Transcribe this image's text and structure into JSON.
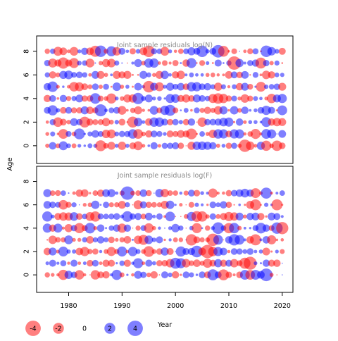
{
  "chart_data": [
    {
      "type": "scatter",
      "title": "Joint sample residuals log(N)",
      "ylabel": "Age",
      "xlim": [
        1974,
        2022
      ],
      "ylim": [
        -1.5,
        9.3
      ],
      "yticks": [
        "0",
        "2",
        "4",
        "6",
        "8"
      ],
      "ages": [
        0,
        1,
        2,
        3,
        4,
        5,
        6,
        7,
        8
      ],
      "years": [
        1976,
        2020
      ],
      "positive_color": "#0000ff",
      "negative_color": "#ff0000",
      "residual_range": [
        -4,
        4
      ]
    },
    {
      "type": "scatter",
      "title": "Joint sample residuals log(F)",
      "xlabel": "Year",
      "ylabel": "Age",
      "xlim": [
        1974,
        2022
      ],
      "ylim": [
        -1.5,
        9.3
      ],
      "yticks": [
        "0",
        "2",
        "4",
        "6",
        "8"
      ],
      "xticks": [
        "1980",
        "1990",
        "2000",
        "2010",
        "2020"
      ],
      "ages": [
        0,
        1,
        2,
        3,
        4,
        5,
        6,
        7
      ],
      "years": [
        1976,
        2020
      ],
      "positive_color": "#0000ff",
      "negative_color": "#ff0000",
      "residual_range": [
        -4,
        4
      ]
    }
  ],
  "legend": {
    "title": "Year",
    "entries": [
      {
        "label": "-4",
        "value": -4
      },
      {
        "label": "-2",
        "value": -2
      },
      {
        "label": "0",
        "value": 0
      },
      {
        "label": "2",
        "value": 2
      },
      {
        "label": "4",
        "value": 4
      }
    ]
  },
  "shared_ylabel": "Age"
}
